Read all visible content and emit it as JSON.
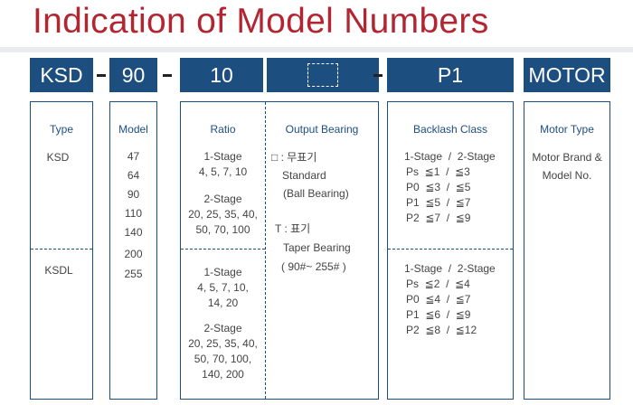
{
  "title": "Indication of Model Numbers",
  "header": {
    "type": "KSD",
    "model": "90",
    "ratio": "10",
    "output": "",
    "backlash": "P1",
    "motor": "MOTOR"
  },
  "type_col": {
    "heading": "Type",
    "row1": "KSD",
    "row2": "KSDL"
  },
  "model_col": {
    "heading": "Model",
    "values": [
      "47",
      "64",
      "90",
      "110",
      "140",
      "200",
      "255"
    ]
  },
  "ratio_col": {
    "heading": "Ratio",
    "top": {
      "stage1_label": "1-Stage",
      "stage1_values": "4, 5, 7, 10",
      "stage2_label": "2-Stage",
      "stage2_line1": "20, 25, 35, 40,",
      "stage2_line2": "50, 70, 100"
    },
    "bottom": {
      "stage1_label": "1-Stage",
      "stage1_line1": "4, 5, 7, 10,",
      "stage1_line2": "14, 20",
      "stage2_label": "2-Stage",
      "stage2_line1": "20, 25, 35, 40,",
      "stage2_line2": "50, 70, 100,",
      "stage2_line3": "140, 200"
    }
  },
  "output_col": {
    "heading": "Output Bearing",
    "opt1_code": "□ : 무표기",
    "opt1_line1": "Standard",
    "opt1_line2": "(Ball Bearing)",
    "opt2_code": "T : 표기",
    "opt2_line1": "Taper Bearing",
    "opt2_line2": "( 90#~ 255# )"
  },
  "backlash_col": {
    "heading": "Backlash Class",
    "top": {
      "stage_label": "1-Stage  /  2-Stage",
      "rows": [
        "Ps  ≦1  /  ≦3",
        "P0  ≦3  /  ≦5",
        "P1  ≦5  /  ≦7",
        "P2  ≦7  /  ≦9"
      ]
    },
    "bottom": {
      "stage_label": "1-Stage  /  2-Stage",
      "rows": [
        "Ps  ≦2  /  ≦4",
        "P0  ≦4  /  ≦7",
        "P1  ≦6  /  ≦9",
        "P2  ≦8  /  ≦12"
      ]
    }
  },
  "motor_col": {
    "heading": "Motor Type",
    "line1": "Motor Brand &",
    "line2": "Model No."
  },
  "colors": {
    "title": "#b22631",
    "header_bg": "#1d4e80",
    "border": "#1d4e80"
  }
}
